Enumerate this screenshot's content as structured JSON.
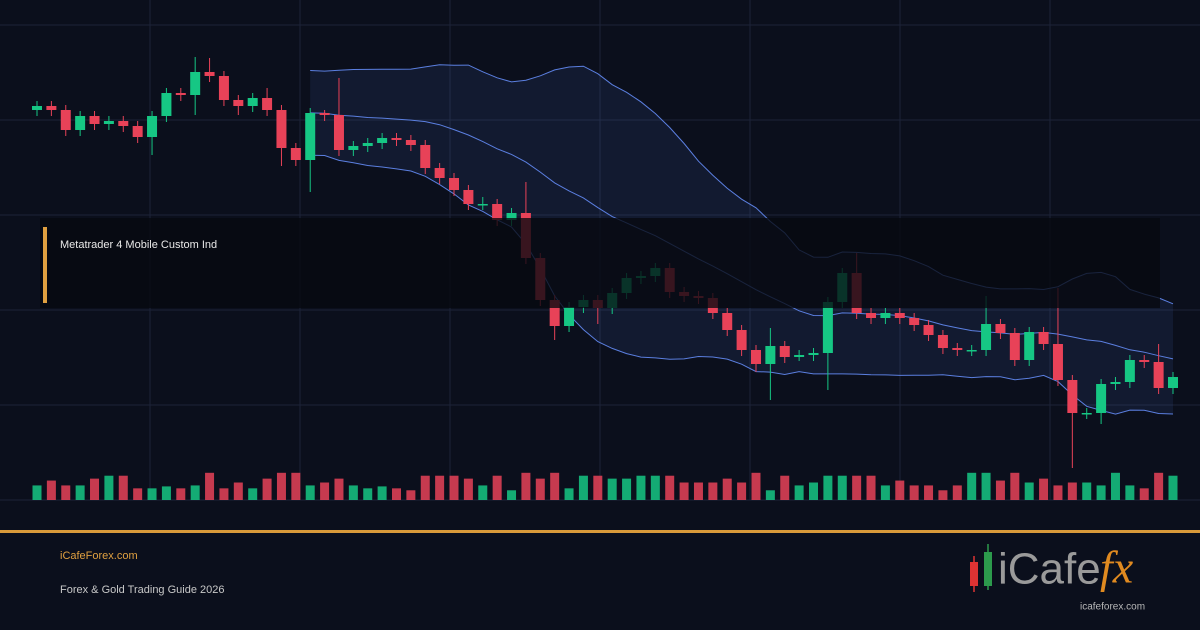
{
  "overlay": {
    "label": "Metatrader 4 Mobile Custom Ind"
  },
  "footer": {
    "site": "iCafeForex.com",
    "tagline": "Forex & Gold Trading Guide 2026"
  },
  "logo": {
    "wordmark": "iCafe",
    "accent": "fx",
    "url": "icafeforex.com"
  },
  "chart_data": {
    "type": "candlestick",
    "open": [
      520,
      524,
      520,
      500,
      514,
      506,
      509,
      504,
      493,
      514,
      537,
      535,
      558,
      554,
      530,
      524,
      532,
      520,
      482,
      470,
      517,
      515,
      480,
      484,
      487,
      492,
      490,
      485,
      462,
      452,
      440,
      426,
      426,
      410,
      417,
      372,
      330,
      304,
      323,
      330,
      322,
      337,
      352,
      354,
      362,
      338,
      334,
      332,
      317,
      300,
      280,
      266,
      284,
      273,
      275,
      277,
      328,
      357,
      317,
      312,
      317,
      312,
      305,
      295,
      282,
      280,
      280,
      306,
      297,
      270,
      298,
      286,
      250,
      217,
      217,
      246,
      248,
      270,
      268,
      242
    ],
    "high": [
      529,
      529,
      525,
      519,
      519,
      514,
      514,
      509,
      519,
      542,
      542,
      573,
      572,
      559,
      535,
      537,
      542,
      525,
      487,
      522,
      520,
      552,
      489,
      492,
      497,
      497,
      495,
      490,
      467,
      457,
      445,
      433,
      431,
      422,
      448,
      377,
      335,
      328,
      335,
      335,
      342,
      357,
      359,
      367,
      367,
      343,
      339,
      337,
      322,
      305,
      285,
      302,
      289,
      280,
      282,
      333,
      362,
      377,
      322,
      322,
      322,
      317,
      310,
      300,
      287,
      285,
      334,
      311,
      302,
      303,
      303,
      342,
      255,
      222,
      251,
      253,
      275,
      275,
      286,
      258
    ],
    "low": [
      514,
      514,
      494,
      494,
      500,
      500,
      498,
      487,
      475,
      508,
      529,
      515,
      548,
      524,
      515,
      518,
      514,
      464,
      464,
      438,
      509,
      474,
      474,
      478,
      481,
      484,
      479,
      456,
      446,
      434,
      420,
      420,
      404,
      404,
      366,
      324,
      290,
      298,
      317,
      306,
      316,
      331,
      346,
      348,
      332,
      328,
      326,
      311,
      294,
      274,
      258,
      230,
      267,
      269,
      269,
      240,
      322,
      311,
      306,
      306,
      306,
      299,
      289,
      276,
      274,
      274,
      274,
      291,
      264,
      264,
      280,
      244,
      162,
      211,
      206,
      240,
      242,
      262,
      236,
      236
    ],
    "close": [
      524,
      520,
      500,
      514,
      506,
      509,
      504,
      493,
      514,
      537,
      535,
      558,
      554,
      530,
      524,
      532,
      520,
      482,
      470,
      517,
      515,
      480,
      484,
      487,
      492,
      490,
      485,
      462,
      452,
      440,
      426,
      426,
      410,
      417,
      372,
      330,
      304,
      323,
      330,
      322,
      337,
      352,
      354,
      362,
      338,
      334,
      332,
      317,
      300,
      280,
      266,
      284,
      273,
      275,
      277,
      328,
      357,
      317,
      312,
      317,
      312,
      305,
      295,
      282,
      280,
      280,
      306,
      297,
      270,
      298,
      286,
      250,
      217,
      217,
      246,
      248,
      270,
      268,
      242,
      253
    ],
    "volume": [
      15,
      20,
      15,
      15,
      22,
      25,
      25,
      12,
      12,
      14,
      12,
      15,
      28,
      12,
      18,
      12,
      22,
      28,
      28,
      15,
      18,
      22,
      15,
      12,
      14,
      12,
      10,
      25,
      25,
      25,
      22,
      15,
      25,
      10,
      28,
      22,
      28,
      12,
      25,
      25,
      22,
      22,
      25,
      25,
      25,
      18,
      18,
      18,
      22,
      18,
      28,
      10,
      25,
      15,
      18,
      25,
      25,
      25,
      25,
      15,
      20,
      15,
      15,
      10,
      15,
      28,
      28,
      20,
      28,
      18,
      22,
      15,
      18,
      18,
      15,
      28,
      15,
      12,
      28,
      25
    ],
    "ylim": [
      130,
      605
    ],
    "yticks": [
      130,
      225,
      320,
      415,
      510,
      605
    ],
    "grid": true,
    "up_color": "#16c784",
    "down_color": "#e84258",
    "band_color": "#5b7fe0"
  }
}
